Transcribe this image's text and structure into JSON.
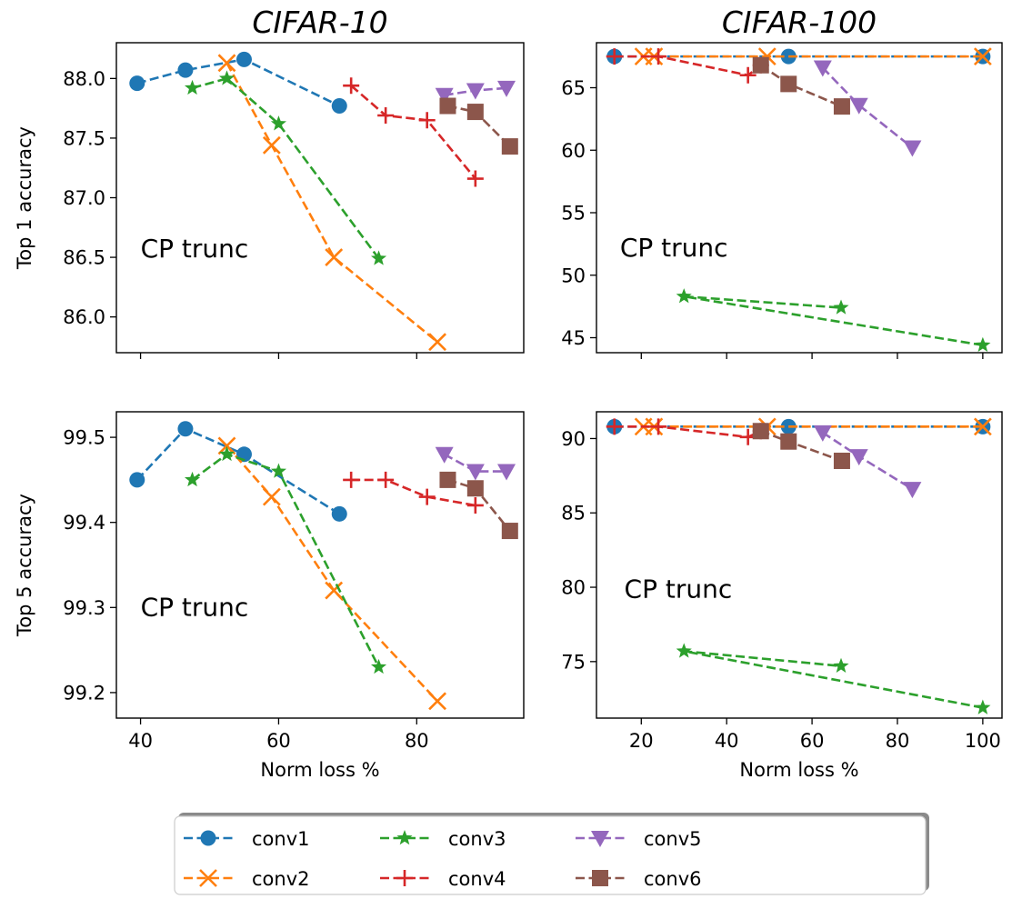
{
  "chart_data": [
    {
      "id": "c10_top1",
      "type": "line",
      "title": "CIFAR-10",
      "xlabel": "",
      "ylabel": "Top 1 accuracy",
      "xlim": [
        36.5,
        95.5
      ],
      "ylim": [
        85.7,
        88.3
      ],
      "xticks": [
        40,
        60,
        80
      ],
      "xtick_labels": [
        "",
        "",
        ""
      ],
      "yticks": [
        86.0,
        86.5,
        87.0,
        87.5,
        88.0
      ],
      "ytick_labels": [
        "86.0",
        "86.5",
        "87.0",
        "87.5",
        "88.0"
      ],
      "annotation": {
        "text": "CP trunc",
        "x": 40,
        "y": 86.5
      },
      "grid": false,
      "series": [
        {
          "name": "conv1",
          "x": [
            39.5,
            46.5,
            55.0,
            68.8
          ],
          "y": [
            87.96,
            88.07,
            88.16,
            87.77
          ]
        },
        {
          "name": "conv2",
          "x": [
            52.5,
            59.0,
            68.0,
            83.0
          ],
          "y": [
            88.13,
            87.44,
            86.5,
            85.79
          ]
        },
        {
          "name": "conv3",
          "x": [
            47.5,
            52.5,
            60.0,
            74.5
          ],
          "y": [
            87.92,
            88.0,
            87.62,
            86.49
          ]
        },
        {
          "name": "conv4",
          "x": [
            70.5,
            75.5,
            81.5,
            88.5
          ],
          "y": [
            87.94,
            87.69,
            87.65,
            87.16
          ]
        },
        {
          "name": "conv5",
          "x": [
            84.0,
            88.5,
            93.0
          ],
          "y": [
            87.86,
            87.9,
            87.92
          ]
        },
        {
          "name": "conv6",
          "x": [
            84.5,
            88.5,
            93.5
          ],
          "y": [
            87.77,
            87.72,
            87.43
          ]
        }
      ]
    },
    {
      "id": "c100_top1",
      "type": "line",
      "title": "CIFAR-100",
      "xlabel": "",
      "ylabel": "",
      "xlim": [
        9.5,
        104.5
      ],
      "ylim": [
        43.8,
        68.6
      ],
      "xticks": [
        20,
        40,
        60,
        80,
        100
      ],
      "xtick_labels": [
        "",
        "",
        "",
        "",
        ""
      ],
      "yticks": [
        45,
        50,
        55,
        60,
        65
      ],
      "ytick_labels": [
        "45",
        "50",
        "55",
        "60",
        "65"
      ],
      "annotation": {
        "text": "CP trunc",
        "x": 15,
        "y": 51.5
      },
      "grid": false,
      "series": [
        {
          "name": "conv1",
          "x": [
            13.7,
            54.5,
            100
          ],
          "y": [
            67.5,
            67.5,
            67.5
          ]
        },
        {
          "name": "conv2",
          "x": [
            20.5,
            23.0,
            49.5,
            100
          ],
          "y": [
            67.5,
            67.5,
            67.5,
            67.5
          ]
        },
        {
          "name": "conv3",
          "x": [
            100,
            30.0,
            66.8
          ],
          "y": [
            44.4,
            48.3,
            47.4
          ]
        },
        {
          "name": "conv4",
          "x": [
            13.7,
            24.0,
            45.0,
            48.0
          ],
          "y": [
            67.5,
            67.5,
            66.0,
            66.8
          ]
        },
        {
          "name": "conv5",
          "x": [
            62.5,
            71.0,
            83.5
          ],
          "y": [
            66.6,
            63.6,
            60.2
          ]
        },
        {
          "name": "conv6",
          "x": [
            48.0,
            54.5,
            67.0
          ],
          "y": [
            66.8,
            65.3,
            63.5
          ]
        }
      ]
    },
    {
      "id": "c10_top5",
      "type": "line",
      "title": "",
      "xlabel": "Norm loss %",
      "ylabel": "Top 5 accuracy",
      "xlim": [
        36.5,
        95.5
      ],
      "ylim": [
        99.17,
        99.53
      ],
      "xticks": [
        40,
        60,
        80
      ],
      "xtick_labels": [
        "40",
        "60",
        "80"
      ],
      "yticks": [
        99.2,
        99.3,
        99.4,
        99.5
      ],
      "ytick_labels": [
        "99.2",
        "99.3",
        "99.4",
        "99.5"
      ],
      "annotation": {
        "text": "CP trunc",
        "x": 40,
        "y": 99.29
      },
      "grid": false,
      "series": [
        {
          "name": "conv1",
          "x": [
            39.5,
            46.5,
            55.0,
            68.8
          ],
          "y": [
            99.45,
            99.51,
            99.48,
            99.41
          ]
        },
        {
          "name": "conv2",
          "x": [
            52.5,
            59.0,
            68.0,
            83.0
          ],
          "y": [
            99.49,
            99.43,
            99.32,
            99.19
          ]
        },
        {
          "name": "conv3",
          "x": [
            47.5,
            52.5,
            60.0,
            74.5
          ],
          "y": [
            99.45,
            99.48,
            99.46,
            99.23
          ]
        },
        {
          "name": "conv4",
          "x": [
            70.5,
            75.5,
            81.5,
            88.5
          ],
          "y": [
            99.45,
            99.45,
            99.43,
            99.42
          ]
        },
        {
          "name": "conv5",
          "x": [
            84.0,
            88.5,
            93.0
          ],
          "y": [
            99.48,
            99.46,
            99.46
          ]
        },
        {
          "name": "conv6",
          "x": [
            84.5,
            88.5,
            93.5
          ],
          "y": [
            99.45,
            99.44,
            99.39
          ]
        }
      ]
    },
    {
      "id": "c100_top5",
      "type": "line",
      "title": "",
      "xlabel": "Norm loss %",
      "ylabel": "",
      "xlim": [
        9.5,
        104.5
      ],
      "ylim": [
        71.2,
        91.8
      ],
      "xticks": [
        20,
        40,
        60,
        80,
        100
      ],
      "xtick_labels": [
        "20",
        "40",
        "60",
        "80",
        "100"
      ],
      "yticks": [
        75,
        80,
        85,
        90
      ],
      "ytick_labels": [
        "75",
        "80",
        "85",
        "90"
      ],
      "annotation": {
        "text": "CP trunc",
        "x": 16,
        "y": 79.3
      },
      "grid": false,
      "series": [
        {
          "name": "conv1",
          "x": [
            13.7,
            54.5,
            100
          ],
          "y": [
            90.8,
            90.8,
            90.8
          ]
        },
        {
          "name": "conv2",
          "x": [
            20.5,
            23.0,
            49.5,
            100
          ],
          "y": [
            90.8,
            90.8,
            90.8,
            90.8
          ]
        },
        {
          "name": "conv3",
          "x": [
            100,
            30.0,
            66.8
          ],
          "y": [
            71.9,
            75.7,
            74.7
          ]
        },
        {
          "name": "conv4",
          "x": [
            13.7,
            24.0,
            45.0,
            48.0
          ],
          "y": [
            90.8,
            90.8,
            90.1,
            90.5
          ]
        },
        {
          "name": "conv5",
          "x": [
            62.5,
            71.0,
            83.5
          ],
          "y": [
            90.4,
            88.8,
            86.6
          ]
        },
        {
          "name": "conv6",
          "x": [
            48.0,
            54.5,
            67.0
          ],
          "y": [
            90.5,
            89.8,
            88.5
          ]
        }
      ]
    }
  ],
  "legend": {
    "placement": "bottom-center",
    "ncol": 4,
    "entries": [
      {
        "name": "conv1",
        "color": "#1f77b4",
        "marker": "circle"
      },
      {
        "name": "conv2",
        "color": "#ff7f0e",
        "marker": "x"
      },
      {
        "name": "conv3",
        "color": "#2ca02c",
        "marker": "star"
      },
      {
        "name": "conv4",
        "color": "#d62728",
        "marker": "plus"
      },
      {
        "name": "conv5",
        "color": "#9467bd",
        "marker": "triangle-down"
      },
      {
        "name": "conv6",
        "color": "#8c564b",
        "marker": "square"
      }
    ]
  }
}
